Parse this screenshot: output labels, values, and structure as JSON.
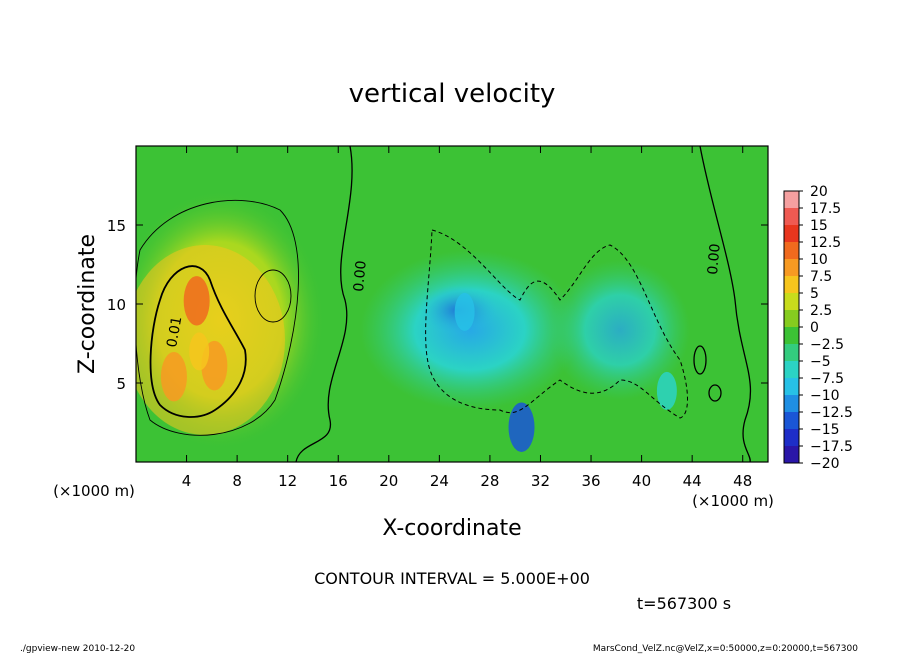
{
  "chart_data": {
    "type": "heatmap",
    "title": "vertical velocity",
    "xlabel": "X-coordinate",
    "ylabel": "Z-coordinate",
    "x_unit": "(×1000 m)",
    "y_unit": "(×1000 m)",
    "xlim": [
      0,
      50
    ],
    "ylim": [
      0,
      20
    ],
    "x_ticks": [
      4,
      8,
      12,
      16,
      20,
      24,
      28,
      32,
      36,
      40,
      44,
      48
    ],
    "y_ticks": [
      5,
      10,
      15
    ],
    "colorbar": {
      "labels": [
        "20",
        "17.5",
        "15",
        "12.5",
        "10",
        "7.5",
        "5",
        "2.5",
        "0",
        "−2.5",
        "−5",
        "−7.5",
        "−10",
        "−12.5",
        "−15",
        "−17.5",
        "−20"
      ],
      "colors": [
        "#f5a0a0",
        "#ef5a52",
        "#e8361e",
        "#f06a1e",
        "#f79a22",
        "#f6c51d",
        "#c8dc1c",
        "#86cc1f",
        "#3cc235",
        "#33cc7e",
        "#2bd3c4",
        "#27c1e6",
        "#1f8fe3",
        "#1a56d6",
        "#1e2ec8",
        "#2a16a8",
        "#5b1fa6"
      ]
    },
    "contour_labels": [
      "0.01",
      "0.00",
      "0.00"
    ],
    "contour_interval": "CONTOUR INTERVAL = 5.000E+00",
    "time": "t=567300 s",
    "footer_left": "./gpview-new  2010-12-20",
    "footer_right": "MarsCond_VelZ.nc@VelZ,x=0:50000,z=0:20000,t=567300",
    "features": [
      {
        "x": 4.8,
        "z": 10.2,
        "w": 13.5
      },
      {
        "x": 3.0,
        "z": 5.4,
        "w": 11.0
      },
      {
        "x": 6.2,
        "z": 6.1,
        "w": 11.0
      },
      {
        "x": 5.0,
        "z": 7.0,
        "w": 7.5
      },
      {
        "x": 26.0,
        "z": 9.5,
        "w": -7.5
      },
      {
        "x": 30.5,
        "z": 2.2,
        "w": -12.5
      },
      {
        "x": 42.0,
        "z": 4.5,
        "w": -6.0
      }
    ]
  }
}
